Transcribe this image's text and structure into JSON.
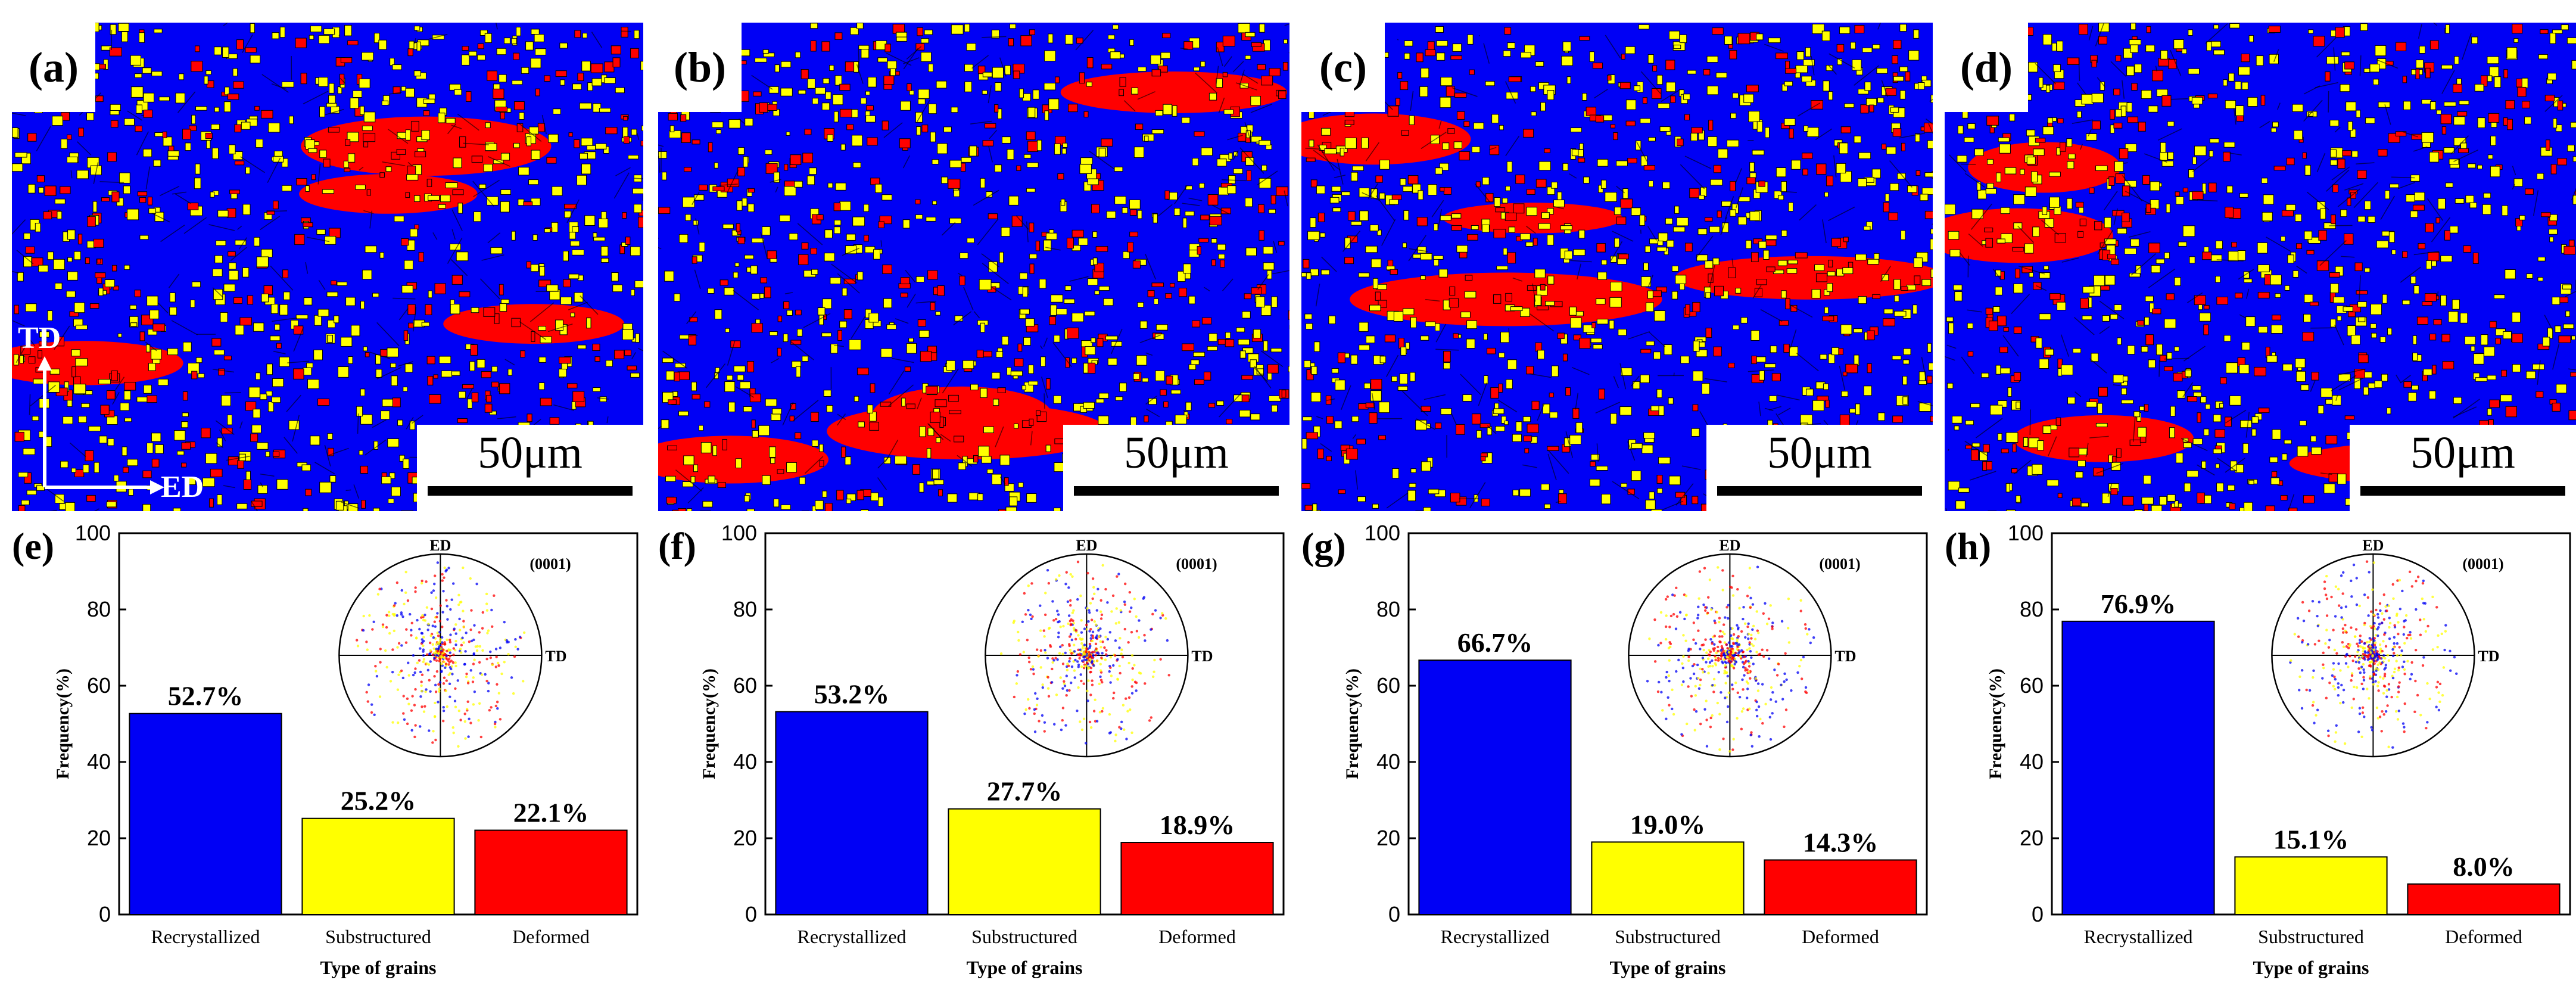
{
  "figure": {
    "map_panels": [
      {
        "letter": "(a)",
        "scale_label": "50μm",
        "has_axes": true
      },
      {
        "letter": "(b)",
        "scale_label": "50μm",
        "has_axes": false
      },
      {
        "letter": "(c)",
        "scale_label": "50μm",
        "has_axes": false
      },
      {
        "letter": "(d)",
        "scale_label": "50μm",
        "has_axes": false
      }
    ],
    "axis_labels": {
      "vertical": "TD",
      "horizontal": "ED"
    },
    "legend_colors": {
      "recrystallized": "#0000f5",
      "substructured": "#ffff00",
      "deformed": "#ff0000"
    }
  },
  "chart_data": [
    {
      "type": "bar",
      "letter": "(e)",
      "categories": [
        "Recrystallized",
        "Substructured",
        "Deformed"
      ],
      "values": [
        52.7,
        25.2,
        22.1
      ],
      "value_labels": [
        "52.7%",
        "25.2%",
        "22.1%"
      ],
      "colors": [
        "#0000f5",
        "#ffff00",
        "#ff0000"
      ],
      "xlabel": "Type of grains",
      "ylabel": "Frequency(%)",
      "ylim": [
        0,
        100
      ],
      "yticks": [
        "0",
        "20",
        "40",
        "60",
        "80",
        "100"
      ],
      "inset": {
        "title": "(0001)",
        "top_label": "ED",
        "right_label": "TD"
      }
    },
    {
      "type": "bar",
      "letter": "(f)",
      "categories": [
        "Recrystallized",
        "Substructured",
        "Deformed"
      ],
      "values": [
        53.2,
        27.7,
        18.9
      ],
      "value_labels": [
        "53.2%",
        "27.7%",
        "18.9%"
      ],
      "colors": [
        "#0000f5",
        "#ffff00",
        "#ff0000"
      ],
      "xlabel": "Type of grains",
      "ylabel": "Frequency(%)",
      "ylim": [
        0,
        100
      ],
      "yticks": [
        "0",
        "20",
        "40",
        "60",
        "80",
        "100"
      ],
      "inset": {
        "title": "(0001)",
        "top_label": "ED",
        "right_label": "TD"
      }
    },
    {
      "type": "bar",
      "letter": "(g)",
      "categories": [
        "Recrystallized",
        "Substructured",
        "Deformed"
      ],
      "values": [
        66.7,
        19.0,
        14.3
      ],
      "value_labels": [
        "66.7%",
        "19.0%",
        "14.3%"
      ],
      "colors": [
        "#0000f5",
        "#ffff00",
        "#ff0000"
      ],
      "xlabel": "Type of grains",
      "ylabel": "Frequency(%)",
      "ylim": [
        0,
        100
      ],
      "yticks": [
        "0",
        "20",
        "40",
        "60",
        "80",
        "100"
      ],
      "inset": {
        "title": "(0001)",
        "top_label": "ED",
        "right_label": "TD"
      }
    },
    {
      "type": "bar",
      "letter": "(h)",
      "categories": [
        "Recrystallized",
        "Substructured",
        "Deformed"
      ],
      "values": [
        76.9,
        15.1,
        8.0
      ],
      "value_labels": [
        "76.9%",
        "15.1%",
        "8.0%"
      ],
      "colors": [
        "#0000f5",
        "#ffff00",
        "#ff0000"
      ],
      "xlabel": "Type of grains",
      "ylabel": "Frequency(%)",
      "ylim": [
        0,
        100
      ],
      "yticks": [
        "0",
        "20",
        "40",
        "60",
        "80",
        "100"
      ],
      "inset": {
        "title": "(0001)",
        "top_label": "ED",
        "right_label": "TD"
      }
    }
  ]
}
